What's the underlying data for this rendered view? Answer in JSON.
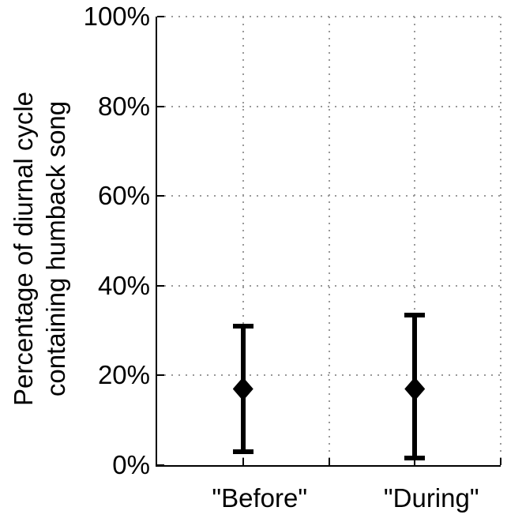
{
  "figure": {
    "colors": {
      "background": "#ffffff",
      "axis": "#000000",
      "grid": "#999999",
      "text": "#000000",
      "marker": "#000000"
    }
  },
  "chart_data": {
    "type": "scatter",
    "subtype": "errorbar",
    "title": "",
    "xlabel": "",
    "ylabel_lines": [
      "Percentage of diurnal cycle",
      "containing humback song"
    ],
    "ylim": [
      0,
      100
    ],
    "yticks_pct": [
      0,
      20,
      40,
      60,
      80,
      100
    ],
    "ytick_labels": [
      "0%",
      "20%",
      "40%",
      "60%",
      "80%",
      "100%"
    ],
    "xlim": [
      0.5,
      2.5
    ],
    "xgrid_positions": [
      1,
      1.5,
      2,
      2.5
    ],
    "categories": [
      {
        "x": 1,
        "label": "\"Before\""
      },
      {
        "x": 2,
        "label": "\"During\""
      }
    ],
    "grid": "dotted",
    "legend": "none",
    "series": [
      {
        "name": "Percentage of diurnal cycle containing song",
        "marker": "diamond",
        "points": [
          {
            "x": 1,
            "category": "\"Before\"",
            "value_pct": 17,
            "ci_low_pct": 3,
            "ci_high_pct": 31
          },
          {
            "x": 2,
            "category": "\"During\"",
            "value_pct": 17,
            "ci_low_pct": 1.5,
            "ci_high_pct": 33.5
          }
        ]
      }
    ]
  }
}
